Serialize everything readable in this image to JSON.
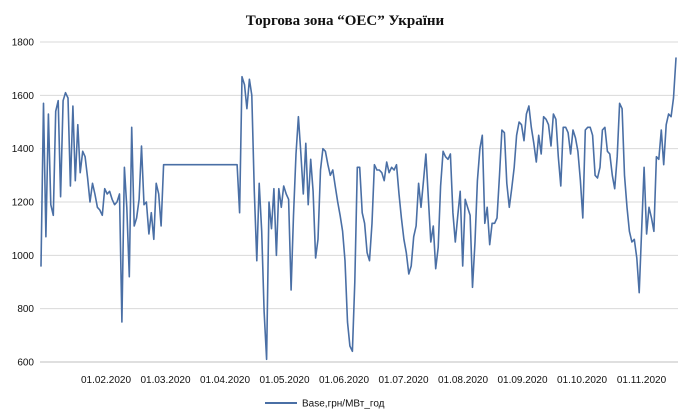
{
  "chart_data": {
    "type": "line",
    "title": "Торгова зона “ОЕС” України",
    "xlabel": "",
    "ylabel": "",
    "ylim": [
      600,
      1800
    ],
    "yticks": [
      600,
      800,
      1000,
      1200,
      1400,
      1600,
      1800
    ],
    "xtick_labels": [
      "01.02.2020",
      "01.03.2020",
      "01.04.2020",
      "01.05.2020",
      "01.06.2020",
      "01.07.2020",
      "01.08.2020",
      "01.09.2020",
      "01.10.2020",
      "01.11.2020"
    ],
    "grid": "horizontal",
    "legend_position": "bottom",
    "series": [
      {
        "name": "Base,грн/МВт_год",
        "color": "#4a6fa5",
        "values": [
          960,
          1570,
          1070,
          1530,
          1190,
          1150,
          1540,
          1580,
          1220,
          1580,
          1610,
          1590,
          1260,
          1560,
          1280,
          1490,
          1310,
          1390,
          1370,
          1290,
          1200,
          1270,
          1230,
          1180,
          1170,
          1150,
          1250,
          1230,
          1240,
          1210,
          1190,
          1200,
          1230,
          750,
          1330,
          1180,
          920,
          1480,
          1110,
          1140,
          1210,
          1410,
          1190,
          1200,
          1080,
          1160,
          1060,
          1270,
          1230,
          1110,
          1340,
          1340,
          1340,
          1340,
          1340,
          1340,
          1340,
          1340,
          1340,
          1340,
          1340,
          1340,
          1340,
          1340,
          1340,
          1340,
          1340,
          1340,
          1340,
          1340,
          1340,
          1340,
          1340,
          1340,
          1340,
          1340,
          1340,
          1340,
          1340,
          1340,
          1340,
          1160,
          1670,
          1640,
          1550,
          1660,
          1600,
          1240,
          980,
          1270,
          1090,
          790,
          610,
          1200,
          1100,
          1250,
          1000,
          1250,
          1180,
          1260,
          1230,
          1210,
          870,
          1150,
          1380,
          1520,
          1380,
          1230,
          1420,
          1190,
          1360,
          1240,
          990,
          1060,
          1320,
          1400,
          1390,
          1340,
          1300,
          1320,
          1260,
          1200,
          1150,
          1090,
          980,
          750,
          660,
          640,
          900,
          1330,
          1330,
          1160,
          1120,
          1010,
          980,
          1120,
          1340,
          1320,
          1320,
          1310,
          1280,
          1350,
          1310,
          1330,
          1320,
          1340,
          1230,
          1140,
          1060,
          1010,
          930,
          960,
          1070,
          1110,
          1270,
          1180,
          1280,
          1380,
          1210,
          1050,
          1110,
          950,
          1030,
          1260,
          1390,
          1370,
          1360,
          1380,
          1160,
          1050,
          1150,
          1240,
          960,
          1210,
          1180,
          1150,
          880,
          1050,
          1280,
          1400,
          1450,
          1120,
          1180,
          1040,
          1120,
          1120,
          1140,
          1300,
          1470,
          1460,
          1270,
          1180,
          1250,
          1330,
          1450,
          1500,
          1490,
          1430,
          1530,
          1560,
          1480,
          1420,
          1350,
          1450,
          1380,
          1520,
          1510,
          1490,
          1410,
          1530,
          1510,
          1370,
          1260,
          1480,
          1480,
          1460,
          1380,
          1470,
          1440,
          1390,
          1280,
          1140,
          1470,
          1480,
          1480,
          1450,
          1300,
          1290,
          1330,
          1470,
          1480,
          1390,
          1380,
          1300,
          1250,
          1370,
          1570,
          1550,
          1300,
          1180,
          1090,
          1050,
          1060,
          990,
          860,
          1100,
          1330,
          1080,
          1180,
          1140,
          1090,
          1370,
          1360,
          1470,
          1340,
          1490,
          1530,
          1520,
          1590,
          1740
        ]
      }
    ]
  }
}
